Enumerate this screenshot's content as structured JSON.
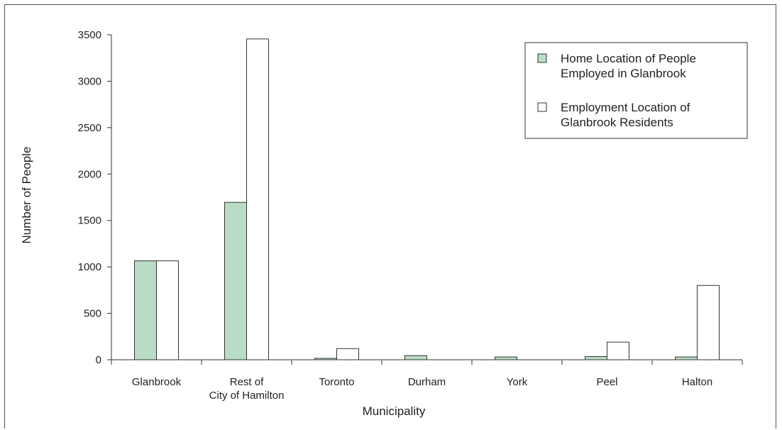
{
  "chart_data": {
    "type": "bar",
    "categories": [
      "Glanbrook",
      "Rest of\nCity of Hamilton",
      "Toronto",
      "Durham",
      "York",
      "Peel",
      "Halton"
    ],
    "series": [
      {
        "name": "Home Location of People\nEmployed in Glanbrook",
        "color": "#b9dcc4",
        "values": [
          1065,
          1695,
          15,
          45,
          30,
          35,
          30
        ]
      },
      {
        "name": "Employment Location of\nGlanbrook Residents",
        "color": "#ffffff",
        "values": [
          1065,
          3455,
          120,
          0,
          0,
          190,
          800
        ]
      }
    ],
    "xlabel": "Municipality",
    "ylabel": "Number of People",
    "ylim": [
      0,
      3500
    ],
    "yticks": [
      0,
      500,
      1000,
      1500,
      2000,
      2500,
      3000,
      3500
    ],
    "grid": false,
    "legend_position": "top-right"
  }
}
